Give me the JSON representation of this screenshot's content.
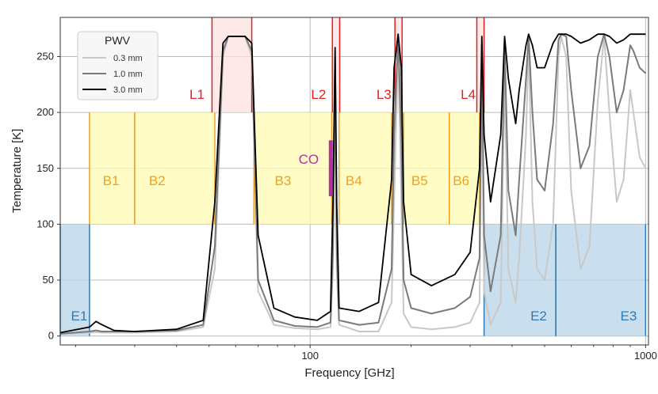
{
  "chart_data": {
    "type": "line",
    "title": "",
    "xlabel": "Frequency [GHz]",
    "ylabel": "Temperature [K]",
    "xscale": "log",
    "xlim": [
      18,
      1020
    ],
    "ylim": [
      -8,
      285
    ],
    "x_ticks": [
      100,
      1000
    ],
    "x_tick_labels": [
      "100",
      "1000"
    ],
    "y_ticks": [
      0,
      50,
      100,
      150,
      200,
      250
    ],
    "y_tick_labels": [
      "0",
      "50",
      "100",
      "150",
      "200",
      "250"
    ],
    "grid": true,
    "legend": {
      "title": "PWV",
      "placement": "top-left",
      "entries": [
        "0.3 mm",
        "1.0 mm",
        "3.0 mm"
      ]
    },
    "series": [
      {
        "name": "0.3 mm",
        "color": "#c8c8c8",
        "points": [
          [
            18,
            2
          ],
          [
            22,
            3
          ],
          [
            23,
            3.5
          ],
          [
            24,
            3
          ],
          [
            30,
            3
          ],
          [
            40,
            4
          ],
          [
            48,
            8
          ],
          [
            52,
            60
          ],
          [
            55,
            250
          ],
          [
            57,
            268
          ],
          [
            64,
            268
          ],
          [
            67,
            250
          ],
          [
            70,
            40
          ],
          [
            78,
            10
          ],
          [
            90,
            7
          ],
          [
            105,
            6
          ],
          [
            115,
            8
          ],
          [
            117,
            60
          ],
          [
            118.75,
            240
          ],
          [
            120,
            60
          ],
          [
            122,
            10
          ],
          [
            140,
            4
          ],
          [
            160,
            4
          ],
          [
            175,
            30
          ],
          [
            178,
            120
          ],
          [
            183,
            260
          ],
          [
            187,
            120
          ],
          [
            190,
            20
          ],
          [
            200,
            8
          ],
          [
            230,
            6
          ],
          [
            270,
            8
          ],
          [
            300,
            12
          ],
          [
            320,
            30
          ],
          [
            325,
            230
          ],
          [
            330,
            40
          ],
          [
            345,
            10
          ],
          [
            370,
            30
          ],
          [
            380,
            230
          ],
          [
            390,
            60
          ],
          [
            410,
            30
          ],
          [
            420,
            70
          ],
          [
            440,
            180
          ],
          [
            448,
            260
          ],
          [
            460,
            120
          ],
          [
            475,
            60
          ],
          [
            500,
            50
          ],
          [
            530,
            100
          ],
          [
            550,
            250
          ],
          [
            560,
            268
          ],
          [
            580,
            250
          ],
          [
            600,
            130
          ],
          [
            640,
            60
          ],
          [
            680,
            80
          ],
          [
            720,
            210
          ],
          [
            752,
            268
          ],
          [
            780,
            200
          ],
          [
            820,
            120
          ],
          [
            860,
            140
          ],
          [
            900,
            220
          ],
          [
            920,
            200
          ],
          [
            960,
            160
          ],
          [
            1000,
            150
          ]
        ]
      },
      {
        "name": "1.0 mm",
        "color": "#7a7a7a",
        "points": [
          [
            18,
            2
          ],
          [
            22,
            4
          ],
          [
            23,
            5
          ],
          [
            24,
            4
          ],
          [
            30,
            4
          ],
          [
            40,
            5
          ],
          [
            48,
            10
          ],
          [
            52,
            80
          ],
          [
            55,
            255
          ],
          [
            57,
            268
          ],
          [
            64,
            268
          ],
          [
            67,
            255
          ],
          [
            70,
            50
          ],
          [
            78,
            14
          ],
          [
            90,
            9
          ],
          [
            105,
            8
          ],
          [
            115,
            12
          ],
          [
            117,
            80
          ],
          [
            118.75,
            250
          ],
          [
            120,
            80
          ],
          [
            122,
            14
          ],
          [
            140,
            10
          ],
          [
            160,
            12
          ],
          [
            175,
            60
          ],
          [
            178,
            180
          ],
          [
            183,
            268
          ],
          [
            187,
            180
          ],
          [
            190,
            50
          ],
          [
            200,
            25
          ],
          [
            230,
            20
          ],
          [
            270,
            25
          ],
          [
            300,
            35
          ],
          [
            320,
            70
          ],
          [
            325,
            260
          ],
          [
            330,
            90
          ],
          [
            345,
            40
          ],
          [
            370,
            90
          ],
          [
            380,
            260
          ],
          [
            390,
            130
          ],
          [
            410,
            90
          ],
          [
            420,
            140
          ],
          [
            440,
            230
          ],
          [
            448,
            268
          ],
          [
            460,
            200
          ],
          [
            475,
            140
          ],
          [
            500,
            130
          ],
          [
            530,
            190
          ],
          [
            550,
            265
          ],
          [
            560,
            270
          ],
          [
            580,
            268
          ],
          [
            600,
            220
          ],
          [
            640,
            150
          ],
          [
            680,
            170
          ],
          [
            720,
            250
          ],
          [
            752,
            270
          ],
          [
            780,
            250
          ],
          [
            820,
            200
          ],
          [
            860,
            220
          ],
          [
            900,
            260
          ],
          [
            920,
            255
          ],
          [
            960,
            240
          ],
          [
            1000,
            235
          ]
        ]
      },
      {
        "name": "3.0 mm",
        "color": "#000000",
        "points": [
          [
            18,
            3
          ],
          [
            22,
            8
          ],
          [
            23,
            13
          ],
          [
            24,
            10
          ],
          [
            26,
            5
          ],
          [
            30,
            4
          ],
          [
            40,
            6
          ],
          [
            48,
            14
          ],
          [
            52,
            120
          ],
          [
            55,
            262
          ],
          [
            57,
            268
          ],
          [
            64,
            268
          ],
          [
            67,
            262
          ],
          [
            70,
            90
          ],
          [
            78,
            25
          ],
          [
            90,
            17
          ],
          [
            105,
            14
          ],
          [
            115,
            22
          ],
          [
            117,
            120
          ],
          [
            118.75,
            258
          ],
          [
            120,
            120
          ],
          [
            122,
            25
          ],
          [
            140,
            22
          ],
          [
            160,
            30
          ],
          [
            175,
            140
          ],
          [
            178,
            240
          ],
          [
            183,
            270
          ],
          [
            187,
            240
          ],
          [
            190,
            120
          ],
          [
            200,
            55
          ],
          [
            230,
            45
          ],
          [
            270,
            55
          ],
          [
            300,
            75
          ],
          [
            320,
            150
          ],
          [
            325,
            268
          ],
          [
            330,
            180
          ],
          [
            345,
            120
          ],
          [
            370,
            180
          ],
          [
            380,
            268
          ],
          [
            390,
            230
          ],
          [
            410,
            190
          ],
          [
            420,
            220
          ],
          [
            440,
            260
          ],
          [
            448,
            270
          ],
          [
            460,
            260
          ],
          [
            475,
            240
          ],
          [
            500,
            240
          ],
          [
            530,
            262
          ],
          [
            550,
            270
          ],
          [
            560,
            270
          ],
          [
            580,
            270
          ],
          [
            600,
            268
          ],
          [
            640,
            262
          ],
          [
            680,
            265
          ],
          [
            720,
            270
          ],
          [
            752,
            270
          ],
          [
            780,
            268
          ],
          [
            820,
            262
          ],
          [
            860,
            265
          ],
          [
            900,
            270
          ],
          [
            920,
            270
          ],
          [
            960,
            270
          ],
          [
            1000,
            270
          ]
        ]
      }
    ],
    "bands": [
      {
        "id": "E1",
        "label": "E1",
        "x0": 18,
        "x1": 22,
        "y0": 0,
        "y1": 100,
        "fill": "#b8d4e8",
        "edge": "#2c7bb6",
        "label_x": 20.5,
        "label_y": 14,
        "label_color": "#2c7bb6"
      },
      {
        "id": "E2",
        "label": "E2",
        "x0": 330,
        "x1": 540,
        "y0": 0,
        "y1": 100,
        "fill": "#b8d4e8",
        "edge": "#2c7bb6",
        "label_x": 480,
        "label_y": 14,
        "label_color": "#2c7bb6"
      },
      {
        "id": "E3",
        "label": "E3",
        "x0": 540,
        "x1": 1000,
        "y0": 0,
        "y1": 100,
        "fill": "#b8d4e8",
        "edge": "#2c7bb6",
        "label_x": 890,
        "label_y": 14,
        "label_color": "#2c7bb6"
      },
      {
        "id": "B1",
        "label": "B1",
        "x0": 22,
        "x1": 30,
        "y0": 100,
        "y1": 200,
        "fill": "#fffbb3",
        "edge": "#f0a020",
        "label_x": 25.5,
        "label_y": 135,
        "label_color": "#f0a020"
      },
      {
        "id": "B2",
        "label": "B2",
        "x0": 30,
        "x1": 52,
        "y0": 100,
        "y1": 200,
        "fill": "#fffbb3",
        "edge": "#f0a020",
        "label_x": 35,
        "label_y": 135,
        "label_color": "#f0a020"
      },
      {
        "id": "B3",
        "label": "B3",
        "x0": 68,
        "x1": 116,
        "y0": 100,
        "y1": 200,
        "fill": "#fffbb3",
        "edge": "#f0a020",
        "label_x": 83,
        "label_y": 135,
        "label_color": "#f0a020"
      },
      {
        "id": "B4",
        "label": "B4",
        "x0": 122,
        "x1": 175,
        "y0": 100,
        "y1": 200,
        "fill": "#fffbb3",
        "edge": "#f0a020",
        "label_x": 135,
        "label_y": 135,
        "label_color": "#f0a020"
      },
      {
        "id": "B5",
        "label": "B5",
        "x0": 190,
        "x1": 260,
        "y0": 100,
        "y1": 200,
        "fill": "#fffbb3",
        "edge": "#f0a020",
        "label_x": 212,
        "label_y": 135,
        "label_color": "#f0a020"
      },
      {
        "id": "B6",
        "label": "B6",
        "x0": 260,
        "x1": 320,
        "y0": 100,
        "y1": 200,
        "fill": "#fffbb3",
        "edge": "#f0a020",
        "label_x": 282,
        "label_y": 135,
        "label_color": "#f0a020"
      }
    ],
    "lines": [
      {
        "id": "L1",
        "label": "L1",
        "x0": 51,
        "x1": 67,
        "y0": 200,
        "y1": 285,
        "fill": "#ffe0e0",
        "edge": "#e02020",
        "label_x": 46,
        "label_y": 212,
        "label_color": "#e02020"
      },
      {
        "id": "L2",
        "label": "L2",
        "x0": 116.5,
        "x1": 122.5,
        "y0": 200,
        "y1": 285,
        "fill": "#ffe0e0",
        "edge": "#e02020",
        "label_x": 106,
        "label_y": 212,
        "label_color": "#e02020"
      },
      {
        "id": "L3",
        "label": "L3",
        "x0": 179,
        "x1": 188,
        "y0": 200,
        "y1": 285,
        "fill": "#ffe0e0",
        "edge": "#e02020",
        "label_x": 166,
        "label_y": 212,
        "label_color": "#e02020"
      },
      {
        "id": "L4",
        "label": "L4",
        "x0": 314,
        "x1": 330,
        "y0": 200,
        "y1": 285,
        "fill": "#ffe0e0",
        "edge": "#e02020",
        "label_x": 296,
        "label_y": 212,
        "label_color": "#e02020"
      }
    ],
    "annotations": [
      {
        "id": "CO",
        "text": "CO",
        "x": 115.27,
        "y0": 125,
        "y1": 175,
        "color": "#b5319c",
        "label_x": 99,
        "label_y": 154
      }
    ],
    "colors": {
      "axis": "#333333",
      "grid": "#bbbbbb"
    }
  }
}
